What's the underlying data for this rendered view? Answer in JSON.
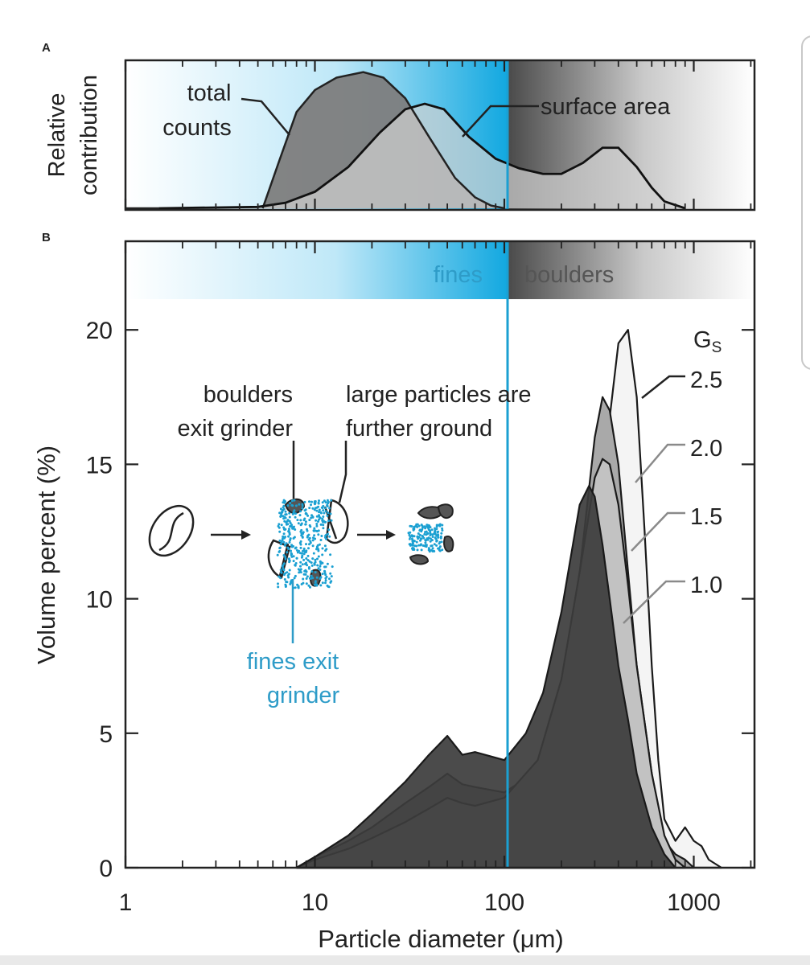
{
  "chart_data": [
    {
      "type": "area",
      "panel_label": "A",
      "ylabel_line1": "Relative",
      "ylabel_line2": "contribution",
      "x_scale": "log",
      "xlim": [
        1,
        2000
      ],
      "regions": {
        "fines": [
          1,
          100
        ],
        "boulders": [
          100,
          2000
        ]
      },
      "series": [
        {
          "label_line1": "total",
          "label_line2": "counts",
          "color": "#7d7d7d",
          "x": [
            5.3,
            6.5,
            8,
            10,
            13,
            18,
            23,
            30,
            40,
            55,
            70,
            85,
            100
          ],
          "y": [
            0,
            0.35,
            0.7,
            0.86,
            0.95,
            0.99,
            0.95,
            0.8,
            0.52,
            0.22,
            0.08,
            0.02,
            0
          ]
        },
        {
          "label": "surface area",
          "color": "#d2d2d2",
          "x": [
            1.5,
            5,
            7,
            10,
            15,
            22,
            30,
            38,
            48,
            65,
            90,
            120,
            160,
            200,
            260,
            330,
            400,
            500,
            600,
            700,
            900
          ],
          "y": [
            0,
            0.01,
            0.04,
            0.12,
            0.3,
            0.55,
            0.72,
            0.76,
            0.72,
            0.52,
            0.36,
            0.29,
            0.25,
            0.25,
            0.33,
            0.44,
            0.44,
            0.3,
            0.15,
            0.05,
            0
          ]
        }
      ]
    },
    {
      "type": "area",
      "panel_label": "B",
      "xlabel": "Particle diameter (μm)",
      "ylabel": "Volume percent (%)",
      "x_scale": "log",
      "xlim": [
        1,
        2000
      ],
      "ylim": [
        0,
        24
      ],
      "xticks": [
        "1",
        "10",
        "100",
        "1000"
      ],
      "yticks": [
        "0",
        "5",
        "10",
        "15",
        "20"
      ],
      "region_labels": {
        "fines": "fines",
        "boulders": "boulders"
      },
      "legend_title": "Gs",
      "series": [
        {
          "name": "2.5",
          "color": "#f4f4f4",
          "x": [
            8,
            10,
            15,
            20,
            30,
            40,
            50,
            60,
            70,
            100,
            150,
            200,
            250,
            300,
            350,
            400,
            450,
            500,
            550,
            600,
            650,
            700,
            800,
            900,
            1000,
            1100,
            1200,
            1400
          ],
          "y": [
            0,
            0.35,
            0.8,
            1.3,
            2.0,
            2.4,
            2.6,
            2.3,
            2.1,
            2.1,
            2.3,
            3.5,
            6.0,
            11.0,
            16.0,
            19.5,
            20.0,
            17.5,
            12.5,
            7.5,
            4.0,
            1.8,
            1.0,
            1.5,
            1.0,
            0.8,
            0.3,
            0
          ]
        },
        {
          "name": "2.0",
          "color": "#a9a9a9",
          "x": [
            8,
            10,
            15,
            20,
            30,
            40,
            50,
            60,
            70,
            100,
            150,
            200,
            250,
            300,
            330,
            360,
            400,
            450,
            500,
            600,
            700,
            800,
            900,
            1000
          ],
          "y": [
            0,
            0.4,
            1.0,
            1.5,
            2.4,
            3.0,
            3.5,
            3.1,
            3.0,
            2.8,
            3.6,
            6.5,
            11.0,
            16.0,
            17.5,
            17.0,
            15.0,
            11.0,
            7.5,
            3.5,
            1.0,
            0.5,
            0.3,
            0
          ]
        },
        {
          "name": "1.5",
          "color": "#c2c2c2",
          "x": [
            8,
            10,
            15,
            20,
            30,
            40,
            50,
            60,
            70,
            100,
            150,
            200,
            250,
            300,
            330,
            360,
            400,
            450,
            500,
            600,
            700,
            800,
            900
          ],
          "y": [
            0,
            0.3,
            0.7,
            1.1,
            1.7,
            2.2,
            2.6,
            2.4,
            2.3,
            2.6,
            4.0,
            7.0,
            11.0,
            14.5,
            15.2,
            15.0,
            13.5,
            10.5,
            7.5,
            3.5,
            1.2,
            0.3,
            0
          ]
        },
        {
          "name": "1.0",
          "color": "#3c3c3c",
          "x": [
            8,
            10,
            15,
            20,
            30,
            40,
            50,
            60,
            70,
            100,
            130,
            160,
            200,
            250,
            280,
            300,
            330,
            360,
            400,
            450,
            500,
            600,
            700,
            800
          ],
          "y": [
            0,
            0.4,
            1.2,
            2.0,
            3.2,
            4.2,
            4.9,
            4.2,
            4.3,
            4.0,
            5.0,
            6.5,
            9.5,
            13.5,
            14.2,
            13.8,
            12.0,
            10.0,
            7.5,
            5.5,
            3.5,
            1.5,
            0.5,
            0
          ]
        }
      ]
    }
  ],
  "inset": {
    "label_boulders_line1": "boulders",
    "label_boulders_line2": "exit grinder",
    "label_ground_line1": "large particles are",
    "label_ground_line2": "further ground",
    "label_fines_line1": "fines exit",
    "label_fines_line2": "grinder"
  },
  "colors": {
    "fines_blue": "#1ba0d2",
    "fines_text": "#2e9cc8",
    "boulders_gray": "#5a5a5a",
    "axis": "#222222"
  }
}
